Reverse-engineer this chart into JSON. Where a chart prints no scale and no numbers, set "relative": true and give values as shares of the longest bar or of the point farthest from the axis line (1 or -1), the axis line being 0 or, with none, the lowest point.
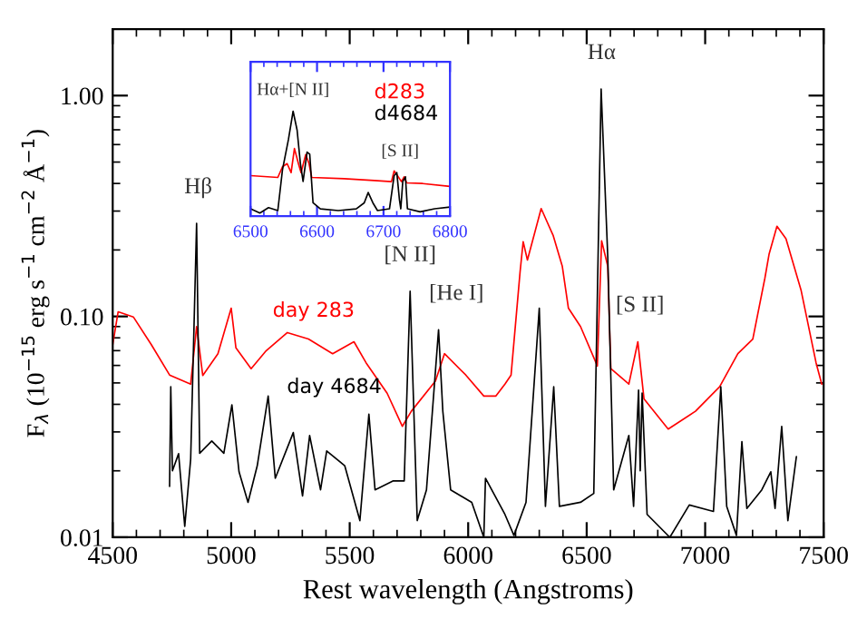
{
  "chart_data": [
    {
      "type": "line",
      "xlabel": "Rest wavelength (Angstroms)",
      "ylabel": "F$_{λ}$ (10$^{−15}$ erg s$^{−1}$ cm$^{−2}$ Å$^{−1}$)",
      "log": "y",
      "xlim": [
        4500,
        7500
      ],
      "ylim": [
        0.01,
        2.0
      ],
      "xticks": [
        4500,
        5000,
        5500,
        6000,
        6500,
        7000,
        7500
      ],
      "yticks": [
        0.01,
        {
          "value": 0.1,
          "label": "0.10"
        },
        {
          "value": 1,
          "label": "1.00"
        }
      ],
      "grid": false,
      "annotations": [
        {
          "text": "Hβ",
          "x": 4861,
          "y": 0.264
        },
        {
          "text": "[N II]",
          "x": 5755,
          "y": 0.13
        },
        {
          "text": "[He I]",
          "x": 5876,
          "y": 0.087
        },
        {
          "text": "Hα",
          "x": 6563,
          "y": 1.07
        },
        {
          "text": "[S II]",
          "x": 6725,
          "y": 0.077
        }
      ],
      "series": [
        {
          "name": "day 283",
          "color": "#ff0000",
          "x": [
            4500,
            4523,
            4587,
            4663,
            4740,
            4829,
            4854,
            4880,
            4944,
            5000,
            5020,
            5084,
            5148,
            5237,
            5326,
            5428,
            5518,
            5569,
            5658,
            5722,
            5760,
            5862,
            5900,
            5990,
            6066,
            6117,
            6155,
            6181,
            6219,
            6232,
            6250,
            6308,
            6359,
            6397,
            6423,
            6474,
            6545,
            6563,
            6589,
            6602,
            6678,
            6716,
            6742,
            6844,
            6959,
            7061,
            7138,
            7201,
            7252,
            7270,
            7303,
            7341,
            7405,
            7468,
            7492
          ],
          "values": [
            0.0745,
            0.105,
            0.0995,
            0.0745,
            0.0543,
            0.0494,
            0.09,
            0.054,
            0.0678,
            0.109,
            0.072,
            0.058,
            0.07,
            0.0845,
            0.079,
            0.0678,
            0.0768,
            0.0617,
            0.0449,
            0.0318,
            0.0372,
            0.051,
            0.0678,
            0.0543,
            0.0436,
            0.0436,
            0.0494,
            0.0543,
            0.159,
            0.218,
            0.18,
            0.308,
            0.232,
            0.169,
            0.109,
            0.09,
            0.0597,
            0.22,
            0.169,
            0.058,
            0.0494,
            0.0768,
            0.0423,
            0.0309,
            0.0372,
            0.048,
            0.0678,
            0.079,
            0.149,
            0.192,
            0.256,
            0.225,
            0.131,
            0.0617,
            0.0494
          ]
        },
        {
          "name": "day 4684",
          "color": "#000000",
          "x": [
            4740,
            4745,
            4752,
            4778,
            4804,
            4829,
            4854,
            4867,
            4918,
            4969,
            5003,
            5033,
            5071,
            5110,
            5156,
            5186,
            5262,
            5301,
            5331,
            5377,
            5403,
            5479,
            5543,
            5581,
            5607,
            5684,
            5730,
            5755,
            5785,
            5824,
            5875,
            5893,
            5926,
            6015,
            6066,
            6073,
            6155,
            6193,
            6244,
            6300,
            6326,
            6361,
            6385,
            6474,
            6530,
            6561,
            6589,
            6614,
            6678,
            6698,
            6719,
            6726,
            6734,
            6755,
            6851,
            6933,
            7035,
            7066,
            7091,
            7132,
            7155,
            7176,
            7239,
            7277,
            7295,
            7323,
            7349,
            7385
          ],
          "values": [
            0.017,
            0.048,
            0.02,
            0.0239,
            0.0112,
            0.0226,
            0.264,
            0.024,
            0.0273,
            0.024,
            0.0398,
            0.0198,
            0.0144,
            0.0211,
            0.0436,
            0.0185,
            0.0298,
            0.0154,
            0.0289,
            0.0164,
            0.0246,
            0.0211,
            0.0119,
            0.0361,
            0.0164,
            0.018,
            0.018,
            0.13,
            0.0119,
            0.0164,
            0.0871,
            0.0372,
            0.0164,
            0.0144,
            0.01,
            0.0185,
            0.0127,
            0.0102,
            0.0144,
            0.109,
            0.0138,
            0.048,
            0.0138,
            0.0144,
            0.0158,
            1.07,
            0.186,
            0.0164,
            0.0289,
            0.0138,
            0.0464,
            0.02,
            0.045,
            0.0127,
            0.01,
            0.014,
            0.0131,
            0.048,
            0.0138,
            0.0102,
            0.0271,
            0.0135,
            0.0164,
            0.0198,
            0.0135,
            0.0318,
            0.0119,
            0.0232
          ]
        }
      ]
    },
    {
      "type": "line",
      "relative": true,
      "xlim": [
        6500,
        6800
      ],
      "xticks": [
        6500,
        6600,
        6700,
        6800
      ],
      "tick_labels": "x",
      "annotations": [
        {
          "text": "Hα+[N II]",
          "x": 6564,
          "y": 1.0
        },
        {
          "text": "[S II]",
          "x": 6725,
          "y": 0.414
        }
      ],
      "series": [
        {
          "name": "d283",
          "color": "#ff0000",
          "x": [
            6500,
            6541,
            6548,
            6555,
            6561,
            6566,
            6572,
            6576,
            6583,
            6588,
            6592,
            6641,
            6686,
            6712,
            6716,
            6721,
            6727,
            6731,
            6735,
            6759,
            6800
          ],
          "values": [
            0.385,
            0.368,
            0.47,
            0.5,
            0.414,
            0.644,
            0.5,
            0.414,
            0.586,
            0.5,
            0.368,
            0.356,
            0.339,
            0.328,
            0.431,
            0.385,
            0.328,
            0.374,
            0.316,
            0.31,
            0.282
          ]
        },
        {
          "name": "d4684",
          "color": "#000000",
          "x": [
            6500,
            6514,
            6527,
            6541,
            6548,
            6557,
            6564,
            6570,
            6575,
            6579,
            6585,
            6589,
            6594,
            6605,
            6632,
            6659,
            6671,
            6677,
            6684,
            6691,
            6709,
            6716,
            6720,
            6724,
            6726,
            6729,
            6733,
            6736,
            6755,
            6777,
            6800
          ],
          "values": [
            0.069,
            0.029,
            0.08,
            0.052,
            0.44,
            0.73,
            1.0,
            0.82,
            0.5,
            0.33,
            0.61,
            0.59,
            0.126,
            0.069,
            0.052,
            0.069,
            0.126,
            0.224,
            0.126,
            0.052,
            0.069,
            0.385,
            0.414,
            0.155,
            0.069,
            0.33,
            0.374,
            0.069,
            0.04,
            0.069,
            0.086
          ]
        }
      ]
    }
  ]
}
